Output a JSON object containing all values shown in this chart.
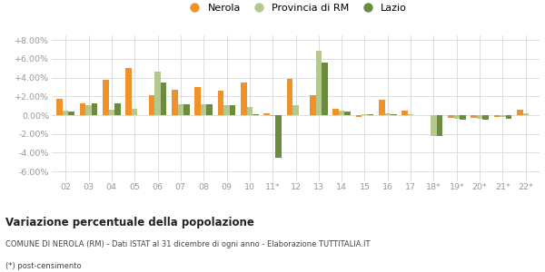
{
  "categories": [
    "02",
    "03",
    "04",
    "05",
    "06",
    "07",
    "08",
    "09",
    "10",
    "11*",
    "12",
    "13",
    "14",
    "15",
    "16",
    "17",
    "18*",
    "19*",
    "20*",
    "21*",
    "22*"
  ],
  "nerola": [
    1.7,
    1.3,
    3.8,
    5.0,
    2.1,
    2.7,
    3.0,
    2.6,
    3.5,
    0.2,
    3.85,
    2.1,
    0.7,
    -0.15,
    1.6,
    0.5,
    0.0,
    -0.3,
    -0.3,
    -0.2,
    0.55
  ],
  "provincia_rm": [
    0.5,
    1.1,
    0.6,
    0.65,
    4.65,
    1.2,
    1.2,
    1.1,
    0.9,
    -0.05,
    1.1,
    6.85,
    0.45,
    0.05,
    0.15,
    0.05,
    -2.2,
    -0.35,
    -0.35,
    -0.2,
    0.2
  ],
  "lazio": [
    0.35,
    1.3,
    1.3,
    0.0,
    3.5,
    1.2,
    1.2,
    1.1,
    0.05,
    -4.5,
    0.0,
    5.6,
    0.35,
    0.05,
    0.05,
    0.0,
    -2.2,
    -0.5,
    -0.5,
    -0.4,
    0.0
  ],
  "nerola_color": "#f0922b",
  "provincia_color": "#b5c98e",
  "lazio_color": "#6b8c3e",
  "ylim_min": -7.0,
  "ylim_max": 8.5,
  "yticks": [
    -6.0,
    -4.0,
    -2.0,
    0.0,
    2.0,
    4.0,
    6.0,
    8.0
  ],
  "title_bold": "Variazione percentuale della popolazione",
  "subtitle": "COMUNE DI NEROLA (RM) - Dati ISTAT al 31 dicembre di ogni anno - Elaborazione TUTTITALIA.IT",
  "footnote": "(*) post-censimento",
  "background_color": "#ffffff",
  "grid_color": "#dddddd",
  "tick_color": "#999999",
  "bar_width": 0.26
}
